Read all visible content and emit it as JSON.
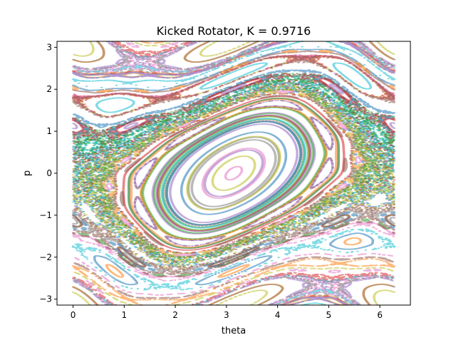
{
  "chart_data": {
    "type": "scatter",
    "title": "Kicked Rotator, K = 0.9716",
    "xlabel": "theta",
    "ylabel": "p",
    "xlim": [
      -0.3142,
      6.5973
    ],
    "ylim": [
      -3.1416,
      3.1416
    ],
    "xticks": [
      0,
      1,
      2,
      3,
      4,
      5,
      6
    ],
    "yticks": [
      -3,
      -2,
      -1,
      0,
      1,
      2,
      3
    ],
    "xtick_labels": [
      "0",
      "1",
      "2",
      "3",
      "4",
      "5",
      "6"
    ],
    "ytick_labels": [
      "−3",
      "−2",
      "−1",
      "0",
      "1",
      "2",
      "3"
    ],
    "K": 0.9716,
    "map": "p' = p + K*sin(theta); theta' = theta + p' (mod 2*pi), p wrapped to [-pi, pi]",
    "grid": false,
    "legend": "none",
    "series_colors": [
      "#1f77b4",
      "#ff7f0e",
      "#2ca02c",
      "#d62728",
      "#9467bd",
      "#8c564b",
      "#e377c2",
      "#7f7f7f",
      "#bcbd22",
      "#17becf"
    ]
  }
}
